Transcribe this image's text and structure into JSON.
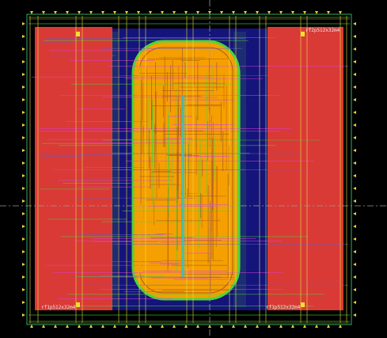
{
  "view": {
    "kind": "chip-layout-viewer"
  },
  "labels": {
    "top_right": "rf2p512x32m4",
    "bottom_left": "rf1p512x32m4",
    "bottom_right": "rf1p512x32m4"
  },
  "colors": {
    "background": "#000000",
    "macro_fill": "#d93a36",
    "standard_cell_fill": "#f5a000",
    "routing_blue": "#1a1a8c",
    "routing_green": "#4cd43a",
    "routing_magenta": "#e040e0",
    "routing_brown": "#a0522d",
    "power_stripe_yellow": "#e8e040",
    "crosshair": "#9a9a9a",
    "pin_marker": "#f0d040"
  }
}
